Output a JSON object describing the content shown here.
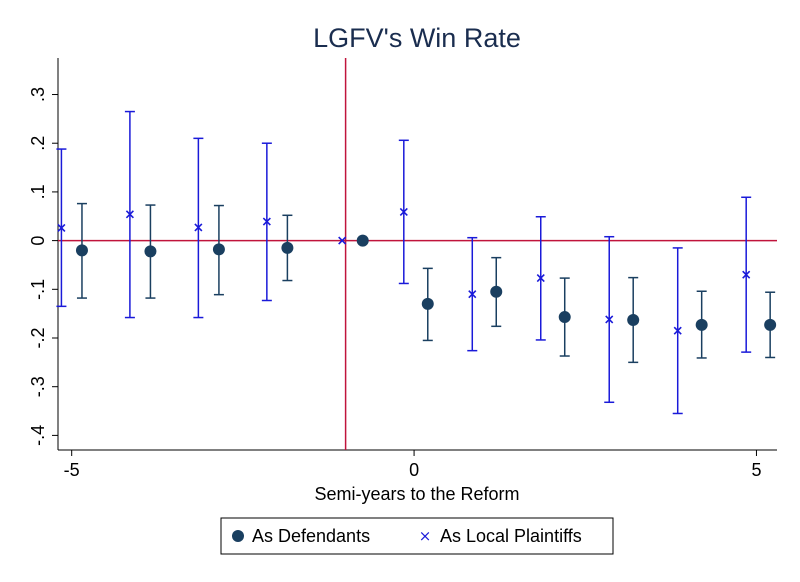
{
  "chart_data": {
    "type": "scatter",
    "title": "LGFV's Win Rate",
    "xlabel": "Semi-years to the Reform",
    "ylabel": "",
    "xlim": [
      -5.2,
      5.3
    ],
    "ylim": [
      -0.43,
      0.375
    ],
    "x_ticks": [
      -5,
      0,
      5
    ],
    "x_tick_labels": [
      "-5",
      "0",
      "5"
    ],
    "y_ticks": [
      -0.4,
      -0.3,
      -0.2,
      -0.1,
      0,
      0.1,
      0.2,
      0.3
    ],
    "y_tick_labels": [
      "-.4",
      "-.3",
      "-.2",
      "-.1",
      "0",
      ".1",
      ".2",
      ".3"
    ],
    "reference_lines": {
      "horizontal_y": 0,
      "vertical_x": -1,
      "color": "#c0143c"
    },
    "grid": false,
    "legend_position": "bottom",
    "series": [
      {
        "name": "As Defendants",
        "marker": "circle",
        "color": "#1a3f60",
        "points": [
          {
            "x": -4.85,
            "y": -0.02,
            "lo": -0.118,
            "hi": 0.076
          },
          {
            "x": -3.85,
            "y": -0.022,
            "lo": -0.118,
            "hi": 0.073
          },
          {
            "x": -2.85,
            "y": -0.018,
            "lo": -0.111,
            "hi": 0.072
          },
          {
            "x": -1.85,
            "y": -0.015,
            "lo": -0.082,
            "hi": 0.052
          },
          {
            "x": -0.75,
            "y": 0.0,
            "lo": 0.0,
            "hi": 0.0
          },
          {
            "x": 0.2,
            "y": -0.13,
            "lo": -0.205,
            "hi": -0.057
          },
          {
            "x": 1.2,
            "y": -0.105,
            "lo": -0.176,
            "hi": -0.035
          },
          {
            "x": 2.2,
            "y": -0.157,
            "lo": -0.237,
            "hi": -0.077
          },
          {
            "x": 3.2,
            "y": -0.163,
            "lo": -0.25,
            "hi": -0.076
          },
          {
            "x": 4.2,
            "y": -0.173,
            "lo": -0.241,
            "hi": -0.104
          },
          {
            "x": 5.2,
            "y": -0.173,
            "lo": -0.24,
            "hi": -0.106
          }
        ]
      },
      {
        "name": "As Local Plaintiffs",
        "marker": "x",
        "color": "#1a1ad9",
        "points": [
          {
            "x": -5.15,
            "y": 0.026,
            "lo": -0.135,
            "hi": 0.188
          },
          {
            "x": -4.15,
            "y": 0.054,
            "lo": -0.158,
            "hi": 0.265
          },
          {
            "x": -3.15,
            "y": 0.027,
            "lo": -0.158,
            "hi": 0.21
          },
          {
            "x": -2.15,
            "y": 0.039,
            "lo": -0.123,
            "hi": 0.2
          },
          {
            "x": -1.05,
            "y": 0.0,
            "lo": 0.0,
            "hi": 0.0
          },
          {
            "x": -0.15,
            "y": 0.059,
            "lo": -0.088,
            "hi": 0.206
          },
          {
            "x": 0.85,
            "y": -0.11,
            "lo": -0.226,
            "hi": 0.006
          },
          {
            "x": 1.85,
            "y": -0.077,
            "lo": -0.204,
            "hi": 0.049
          },
          {
            "x": 2.85,
            "y": -0.162,
            "lo": -0.332,
            "hi": 0.008
          },
          {
            "x": 3.85,
            "y": -0.185,
            "lo": -0.355,
            "hi": -0.015
          },
          {
            "x": 4.85,
            "y": -0.07,
            "lo": -0.229,
            "hi": 0.089
          }
        ]
      }
    ]
  }
}
